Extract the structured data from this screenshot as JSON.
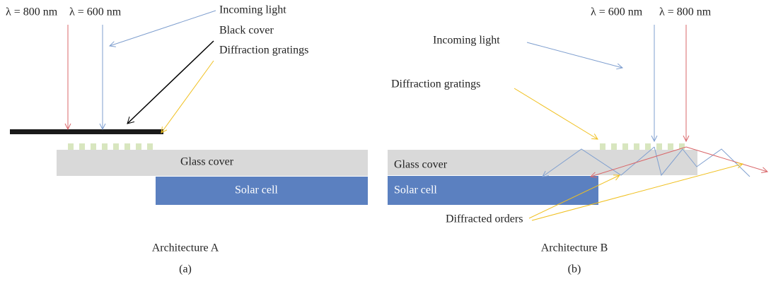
{
  "panel_a": {
    "wavelength_red": "λ = 800 nm",
    "wavelength_blue": "λ = 600 nm",
    "incoming_light": "Incoming light",
    "black_cover": "Black cover",
    "diffraction_gratings": "Diffraction gratings",
    "glass_cover": "Glass cover",
    "solar_cell": "Solar cell",
    "caption": "Architecture A",
    "label": "(a)"
  },
  "panel_b": {
    "wavelength_blue": "λ = 600 nm",
    "wavelength_red": "λ = 800 nm",
    "incoming_light": "Incoming light",
    "diffraction_gratings": "Diffraction gratings",
    "glass_cover": "Glass cover",
    "solar_cell": "Solar cell",
    "diffracted_orders": "Diffracted orders",
    "caption": "Architecture B",
    "label": "(b)"
  }
}
